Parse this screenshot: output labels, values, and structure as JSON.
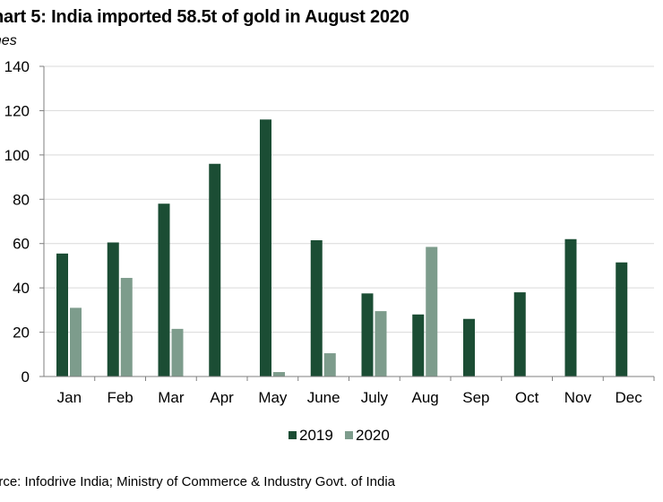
{
  "header": {
    "title": "hart 5: India imported 58.5t of gold in August 2020",
    "unit": "nnes"
  },
  "footer": {
    "source": "urce: Infodrive India; Ministry of Commerce & Industry Govt. of India"
  },
  "colors": {
    "s2019": "#1b4d34",
    "s2020": "#7d9c8c",
    "grid": "#d9d9d9",
    "axis": "#7f7f7f"
  },
  "chart_data": {
    "type": "bar",
    "title": "hart 5: India imported 58.5t of gold in August 2020",
    "ylabel": "nnes",
    "categories": [
      "Jan",
      "Feb",
      "Mar",
      "Apr",
      "May",
      "June",
      "July",
      "Aug",
      "Sep",
      "Oct",
      "Nov",
      "Dec"
    ],
    "series": [
      {
        "name": "2019",
        "values": [
          55.5,
          60.5,
          78,
          96,
          116,
          61.5,
          37.5,
          28,
          26,
          38,
          62,
          51.5
        ]
      },
      {
        "name": "2020",
        "values": [
          31,
          44.5,
          21.5,
          null,
          2,
          10.5,
          29.5,
          58.5,
          null,
          null,
          null,
          null
        ]
      }
    ],
    "ylim": [
      0,
      140
    ],
    "yticks": [
      0,
      20,
      40,
      60,
      80,
      100,
      120,
      140
    ],
    "grid": true,
    "legend": "bottom"
  }
}
